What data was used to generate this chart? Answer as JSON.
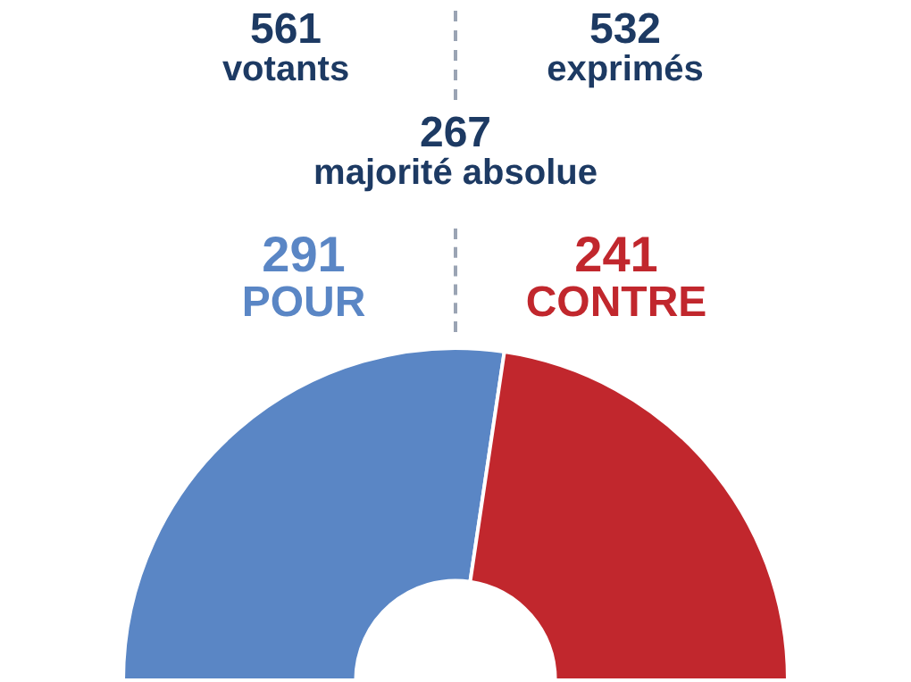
{
  "chart_data": {
    "type": "donut",
    "annotations": [
      "561 votants",
      "532 exprimés",
      "267 majorité absolue"
    ],
    "categories": [
      "POUR",
      "CONTRE"
    ],
    "values": [
      291,
      241
    ],
    "colors": [
      "#5a86c5",
      "#c1272d"
    ],
    "data_labels": true,
    "legend": false
  }
}
